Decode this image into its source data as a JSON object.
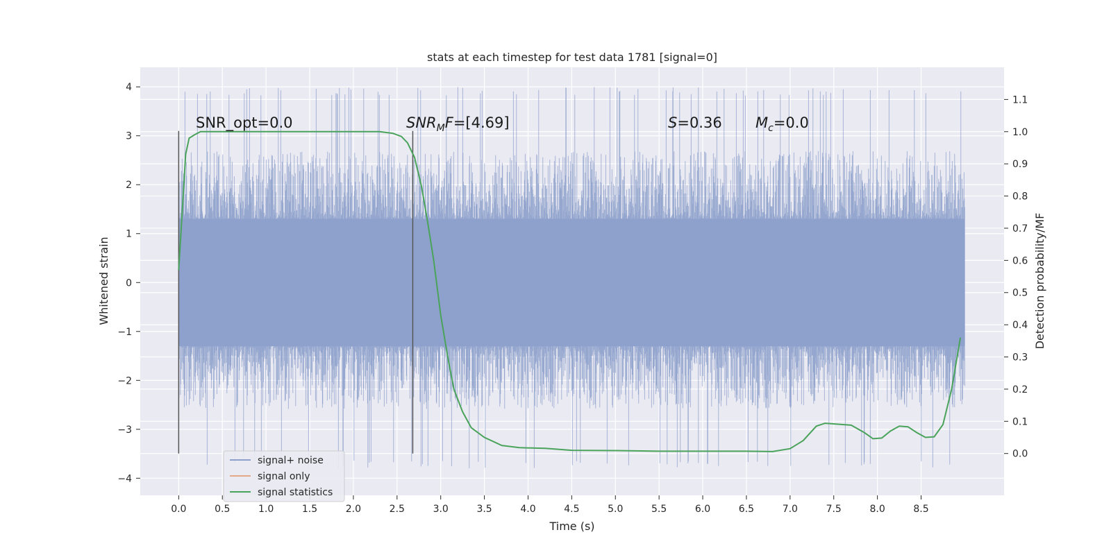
{
  "chart_data": {
    "type": "line",
    "title": "stats at each timestep for test data 1781 [signal=0]",
    "xlabel": "Time (s)",
    "ylabel_left": "Whitened strain",
    "ylabel_right": "Detection probability/MF",
    "xlim": [
      -0.44,
      9.45
    ],
    "ylim_left": [
      -4.35,
      4.4
    ],
    "ylim_right": [
      -0.13,
      1.2
    ],
    "xticks": [
      0.0,
      0.5,
      1.0,
      1.5,
      2.0,
      2.5,
      3.0,
      3.5,
      4.0,
      4.5,
      5.0,
      5.5,
      6.0,
      6.5,
      7.0,
      7.5,
      8.0,
      8.5
    ],
    "xtick_labels": [
      "0.0",
      "0.5",
      "1.0",
      "1.5",
      "2.0",
      "2.5",
      "3.0",
      "3.5",
      "4.0",
      "4.5",
      "5.0",
      "5.5",
      "6.0",
      "6.5",
      "7.0",
      "7.5",
      "8.0",
      "8.5"
    ],
    "yticks_left": [
      -4,
      -3,
      -2,
      -1,
      0,
      1,
      2,
      3,
      4
    ],
    "ytick_labels_left": [
      "−4",
      "−3",
      "−2",
      "−1",
      "0",
      "1",
      "2",
      "3",
      "4"
    ],
    "yticks_right": [
      0.0,
      0.1,
      0.2,
      0.3,
      0.4,
      0.5,
      0.6,
      0.7,
      0.8,
      0.9,
      1.0,
      1.1
    ],
    "ytick_labels_right": [
      "0.0",
      "0.1",
      "0.2",
      "0.3",
      "0.4",
      "0.5",
      "0.6",
      "0.7",
      "0.8",
      "0.9",
      "1.0",
      "1.1"
    ],
    "grid": true,
    "legend_position": "lower-left",
    "legend": [
      {
        "label": "signal+ noise",
        "color": "#8da0cb"
      },
      {
        "label": "signal only",
        "color": "#e5a98a"
      },
      {
        "label": "signal statistics",
        "color": "#4aa35a"
      }
    ],
    "series": [
      {
        "name": "signal+ noise",
        "kind": "noise-band",
        "x_range": [
          0.0,
          9.0
        ],
        "core_band": [
          -1.3,
          1.3
        ],
        "typical_peaks": [
          -2.0,
          2.0
        ],
        "max_value": 4.0,
        "min_value": -3.8
      },
      {
        "name": "signal statistics",
        "x": [
          0.0,
          0.04,
          0.08,
          0.12,
          0.18,
          0.25,
          0.4,
          0.8,
          1.5,
          2.0,
          2.3,
          2.45,
          2.55,
          2.62,
          2.7,
          2.78,
          2.85,
          2.92,
          3.0,
          3.08,
          3.15,
          3.25,
          3.35,
          3.5,
          3.7,
          3.9,
          4.2,
          4.5,
          5.0,
          5.5,
          6.0,
          6.5,
          6.8,
          7.0,
          7.15,
          7.3,
          7.4,
          7.5,
          7.7,
          7.85,
          7.95,
          8.05,
          8.15,
          8.25,
          8.35,
          8.45,
          8.55,
          8.65,
          8.75,
          8.85,
          8.95
        ],
        "values": [
          0.57,
          0.75,
          0.93,
          0.98,
          0.99,
          1.0,
          1.0,
          1.0,
          1.0,
          1.0,
          1.0,
          0.995,
          0.985,
          0.965,
          0.92,
          0.83,
          0.72,
          0.6,
          0.43,
          0.3,
          0.2,
          0.13,
          0.08,
          0.05,
          0.025,
          0.018,
          0.016,
          0.01,
          0.009,
          0.007,
          0.007,
          0.007,
          0.006,
          0.015,
          0.04,
          0.085,
          0.094,
          0.092,
          0.088,
          0.065,
          0.046,
          0.048,
          0.07,
          0.085,
          0.083,
          0.065,
          0.05,
          0.052,
          0.09,
          0.2,
          0.36
        ]
      }
    ],
    "vertical_lines": [
      0.0,
      2.68
    ],
    "annotations": [
      {
        "text": "SNR_opt=0.0",
        "x": 0.2,
        "y": 3.1
      },
      {
        "text": "=[4.69]",
        "italic_prefix": "SNR",
        "sub": "M",
        "italic_suffix": "F",
        "x": 2.6,
        "y": 3.1
      },
      {
        "text": "=0.36",
        "italic_prefix": "S",
        "x": 5.6,
        "y": 3.1
      },
      {
        "text": "=0.0",
        "italic_prefix": "M",
        "sub": "c",
        "x": 6.6,
        "y": 3.1
      }
    ]
  },
  "colors": {
    "background": "#ffffff",
    "plot_face": "#eaeaf2",
    "grid": "#ffffff",
    "noise": "#8da0cb",
    "stat": "#4aa35a",
    "vline": "#555555"
  }
}
